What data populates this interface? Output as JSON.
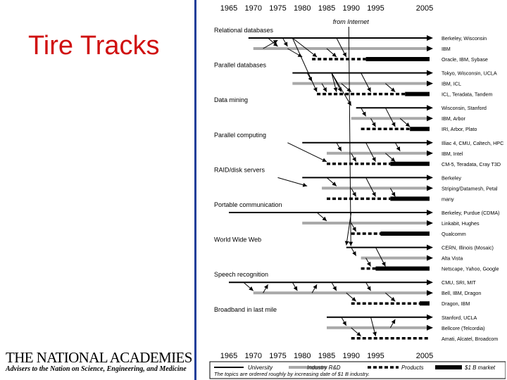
{
  "slide": {
    "title": "Tire Tracks",
    "org_name": "THE NATIONAL ACADEMIES",
    "org_tagline": "Advisers to the Nation on Science, Engineering, and Medicine"
  },
  "chart_data": {
    "type": "timeline",
    "years": [
      "1965",
      "1970",
      "1975",
      "1980",
      "1985",
      "1990",
      "1995",
      "2005"
    ],
    "year_values": [
      1965,
      1970,
      1975,
      1980,
      1985,
      1990,
      1995,
      2005
    ],
    "annotation": "from Internet",
    "annotation_year": 1989.5,
    "line_colors": {
      "university": "#000000",
      "industry": "#a9a9a9",
      "products": "#000000",
      "market": "#000000"
    },
    "categories": [
      {
        "name": "Relational databases",
        "tracks": [
          {
            "type": "university",
            "start": 1969,
            "label": "Berkeley, Wisconsin"
          },
          {
            "type": "industry",
            "start": 1970,
            "label": "IBM"
          },
          {
            "type": "products",
            "start": 1982,
            "market_start": 1993,
            "label": "Oracle, IBM, Sybase"
          }
        ]
      },
      {
        "name": "Parallel databases",
        "tracks": [
          {
            "type": "university",
            "start": 1978,
            "label": "Tokyo, Wisconsin, UCLA"
          },
          {
            "type": "industry",
            "start": 1978,
            "label": "IBM, ICL"
          },
          {
            "type": "products",
            "start": 1983,
            "market_start": 2001,
            "label": "ICL, Teradata, Tandem"
          }
        ]
      },
      {
        "name": "Data mining",
        "tracks": [
          {
            "type": "university",
            "start": 1991,
            "label": "Wisconsin, Stanford"
          },
          {
            "type": "industry",
            "start": 1990,
            "label": "IBM, Arbor"
          },
          {
            "type": "products",
            "start": 1992,
            "market_start": 2002,
            "label": "IRI, Arbor, Plato"
          }
        ]
      },
      {
        "name": "Parallel computing",
        "tracks": [
          {
            "type": "university",
            "start": 1980,
            "label": "Illiac 4, CMU, Caltech, HPC"
          },
          {
            "type": "industry",
            "start": 1985,
            "label": "IBM, Intel"
          },
          {
            "type": "products",
            "start": 1985,
            "market_start": 1998,
            "label": "CM-5, Teradata, Cray T3D"
          }
        ]
      },
      {
        "name": "RAID/disk servers",
        "tracks": [
          {
            "type": "university",
            "start": 1980,
            "label": "Berkeley"
          },
          {
            "type": "industry",
            "start": 1984,
            "label": "Striping/Datamesh, Petal"
          },
          {
            "type": "products",
            "start": 1985,
            "market_start": 1998,
            "label": "many"
          }
        ]
      },
      {
        "name": "Portable communication",
        "tracks": [
          {
            "type": "university",
            "start": 1965,
            "label": "Berkeley, Purdue (CDMA)"
          },
          {
            "type": "industry",
            "start": 1980,
            "label": "Linkabit, Hughes"
          },
          {
            "type": "products",
            "start": 1990,
            "market_start": 1996,
            "label": "Qualcomm"
          }
        ]
      },
      {
        "name": "World Wide Web",
        "tracks": [
          {
            "type": "university",
            "start": 1989,
            "label": "CERN, Illinois (Mosaic)"
          },
          {
            "type": "industry",
            "start": 1992,
            "label": "Alta Vista"
          },
          {
            "type": "products",
            "start": 1992,
            "market_start": 1995,
            "label": "Netscape, Yahoo, Google"
          }
        ]
      },
      {
        "name": "Speech recognition",
        "tracks": [
          {
            "type": "university",
            "start": 1965,
            "label": "CMU, SRI, MIT"
          },
          {
            "type": "industry",
            "start": 1970,
            "label": "Bell, IBM, Dragon"
          },
          {
            "type": "products",
            "start": 1990,
            "market_start": 2004,
            "label": "Dragon, IBM"
          }
        ]
      },
      {
        "name": "Broadband in last mile",
        "tracks": [
          {
            "type": "university",
            "start": 1985,
            "label": "Stanford, UCLA"
          },
          {
            "type": "industry",
            "start": 1985,
            "label": "Bellcore (Telcordia)"
          },
          {
            "type": "products",
            "start": 1990,
            "market_start": null,
            "label": "Amati, Alcatel, Broadcom"
          }
        ]
      }
    ],
    "legend": [
      {
        "type": "university",
        "label": "University"
      },
      {
        "type": "industry",
        "label": "Industry R&D"
      },
      {
        "type": "products",
        "label": "Products"
      },
      {
        "type": "market",
        "label": "$1 B market"
      }
    ],
    "footnote": "The topics are ordered roughly by increasing date of $1 B industry."
  }
}
